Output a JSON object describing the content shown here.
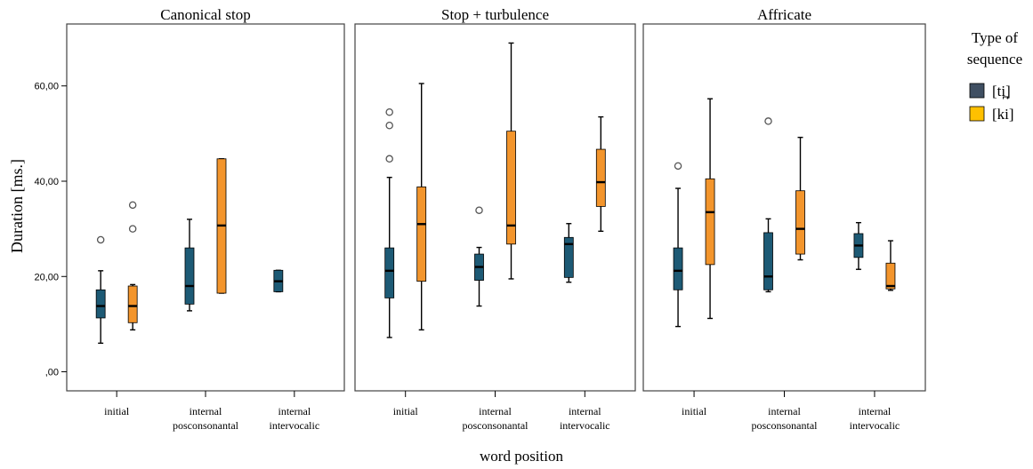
{
  "chart_data": {
    "type": "box",
    "ylabel": "Duration [ms.]",
    "xlabel": "word position",
    "ylim": [
      -4,
      73
    ],
    "y_ticks": [
      0,
      20,
      40,
      60
    ],
    "y_tick_labels": [
      ",00",
      "20,00",
      "40,00",
      "60,00"
    ],
    "categories": [
      [
        "initial"
      ],
      [
        "internal",
        "posconsonantal"
      ],
      [
        "internal",
        "intervocalic"
      ]
    ],
    "legend": {
      "title_lines": [
        "Type of",
        "sequence"
      ],
      "placement": "right",
      "items": [
        {
          "label": "[ti̪]",
          "color": "#3f4f62"
        },
        {
          "label": "[ki]",
          "color": "#ffc000"
        }
      ]
    },
    "series_colors": {
      "ti": "#1d5a75",
      "ki": "#f3952c"
    },
    "panels": [
      {
        "title": "Canonical stop",
        "boxes": [
          {
            "category": 0,
            "series": "ti",
            "min": 6,
            "q1": 11.3,
            "median": 13.8,
            "q3": 17.2,
            "max": 21.2,
            "outliers": [
              27.7
            ]
          },
          {
            "category": 0,
            "series": "ki",
            "min": 8.8,
            "q1": 10.3,
            "median": 13.8,
            "q3": 18,
            "max": 18.3,
            "outliers": [
              30,
              35
            ]
          },
          {
            "category": 1,
            "series": "ti",
            "min": 12.8,
            "q1": 14.2,
            "median": 18,
            "q3": 26,
            "max": 32,
            "outliers": []
          },
          {
            "category": 1,
            "series": "ki",
            "min": 16.5,
            "q1": 16.5,
            "median": 30.7,
            "q3": 44.7,
            "max": 44.7,
            "outliers": []
          },
          {
            "category": 2,
            "series": "ti",
            "min": 16.8,
            "q1": 16.8,
            "median": 19,
            "q3": 21.3,
            "max": 21.3,
            "outliers": []
          }
        ]
      },
      {
        "title": "Stop + turbulence",
        "boxes": [
          {
            "category": 0,
            "series": "ti",
            "min": 7.2,
            "q1": 15.5,
            "median": 21.2,
            "q3": 26,
            "max": 40.8,
            "outliers": [
              44.7,
              51.7,
              54.5
            ]
          },
          {
            "category": 0,
            "series": "ki",
            "min": 8.8,
            "q1": 19,
            "median": 31,
            "q3": 38.8,
            "max": 60.5,
            "outliers": []
          },
          {
            "category": 1,
            "series": "ti",
            "min": 13.8,
            "q1": 19.2,
            "median": 22,
            "q3": 24.7,
            "max": 26.1,
            "outliers": [
              33.9
            ]
          },
          {
            "category": 1,
            "series": "ki",
            "min": 19.5,
            "q1": 26.8,
            "median": 30.7,
            "q3": 50.5,
            "max": 69
          },
          {
            "category": 2,
            "series": "ti",
            "min": 18.8,
            "q1": 19.8,
            "median": 26.8,
            "q3": 28.2,
            "max": 31.1,
            "outliers": []
          },
          {
            "category": 2,
            "series": "ki",
            "min": 29.5,
            "q1": 34.7,
            "median": 39.8,
            "q3": 46.7,
            "max": 53.5,
            "outliers": []
          }
        ]
      },
      {
        "title": "Affricate",
        "boxes": [
          {
            "category": 0,
            "series": "ti",
            "min": 9.5,
            "q1": 17.2,
            "median": 21.2,
            "q3": 26,
            "max": 38.5,
            "outliers": [
              43.2
            ]
          },
          {
            "category": 0,
            "series": "ki",
            "min": 11.2,
            "q1": 22.5,
            "median": 33.5,
            "q3": 40.5,
            "max": 57.3,
            "outliers": []
          },
          {
            "category": 1,
            "series": "ti",
            "min": 16.8,
            "q1": 17.2,
            "median": 20,
            "q3": 29.2,
            "max": 32.1,
            "outliers": [
              52.6
            ]
          },
          {
            "category": 1,
            "series": "ki",
            "min": 23.5,
            "q1": 24.7,
            "median": 30,
            "q3": 38,
            "max": 49.2,
            "outliers": []
          },
          {
            "category": 2,
            "series": "ti",
            "min": 21.5,
            "q1": 24,
            "median": 26.5,
            "q3": 29,
            "max": 31.3,
            "outliers": []
          },
          {
            "category": 2,
            "series": "ki",
            "min": 17.1,
            "q1": 17.4,
            "median": 18,
            "q3": 22.8,
            "max": 27.5,
            "outliers": []
          }
        ]
      }
    ]
  }
}
